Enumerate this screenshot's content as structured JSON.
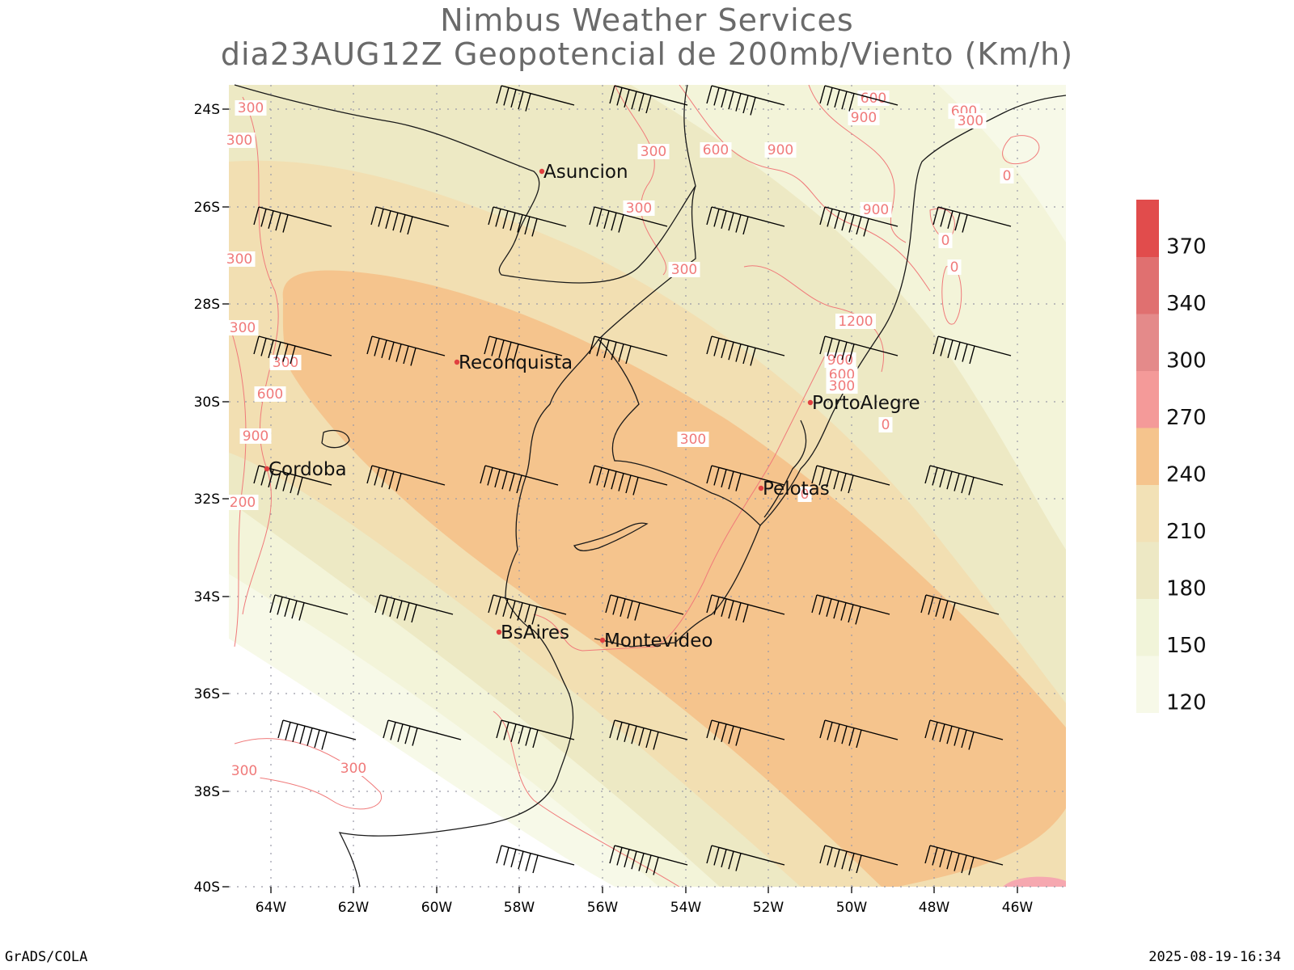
{
  "header": {
    "title": "Nimbus Weather Services",
    "subtitle": "dia23AUG12Z Geopotencial de 200mb/Viento (Km/h)"
  },
  "footer": {
    "left": "GrADS/COLA",
    "right": "2025-08-19-16:34"
  },
  "axes": {
    "lon_labels": [
      "64W",
      "62W",
      "60W",
      "58W",
      "56W",
      "54W",
      "52W",
      "50W",
      "48W",
      "46W"
    ],
    "lat_labels": [
      "24S",
      "26S",
      "28S",
      "30S",
      "32S",
      "34S",
      "36S",
      "38S",
      "40S"
    ]
  },
  "colorbar": {
    "labels": [
      "120",
      "150",
      "180",
      "210",
      "240",
      "270",
      "300",
      "340",
      "370"
    ],
    "colors": [
      "#f7f9e8",
      "#f1f4d9",
      "#ede8c4",
      "#f2e1b6",
      "#f5c48d",
      "#f49a99",
      "#e48a8a",
      "#e07070",
      "#e14c4c"
    ]
  },
  "wind_speed_colors": {
    "c120": "#f7f9e8",
    "c150": "#f3f4d9",
    "c180": "#ede9c4",
    "c210": "#f2dfb2",
    "c240": "#f5c48d",
    "c300": "#f6a8b0"
  },
  "cities": [
    {
      "name": "Asuncion"
    },
    {
      "name": "Reconquista"
    },
    {
      "name": "Cordoba"
    },
    {
      "name": "PortoAlegre"
    },
    {
      "name": "Pelotas"
    },
    {
      "name": "BsAires"
    },
    {
      "name": "Montevideo"
    }
  ],
  "contour_labels": [
    "300",
    "600",
    "900",
    "1200",
    "0",
    "200"
  ],
  "contour_color": "#f07a7a"
}
